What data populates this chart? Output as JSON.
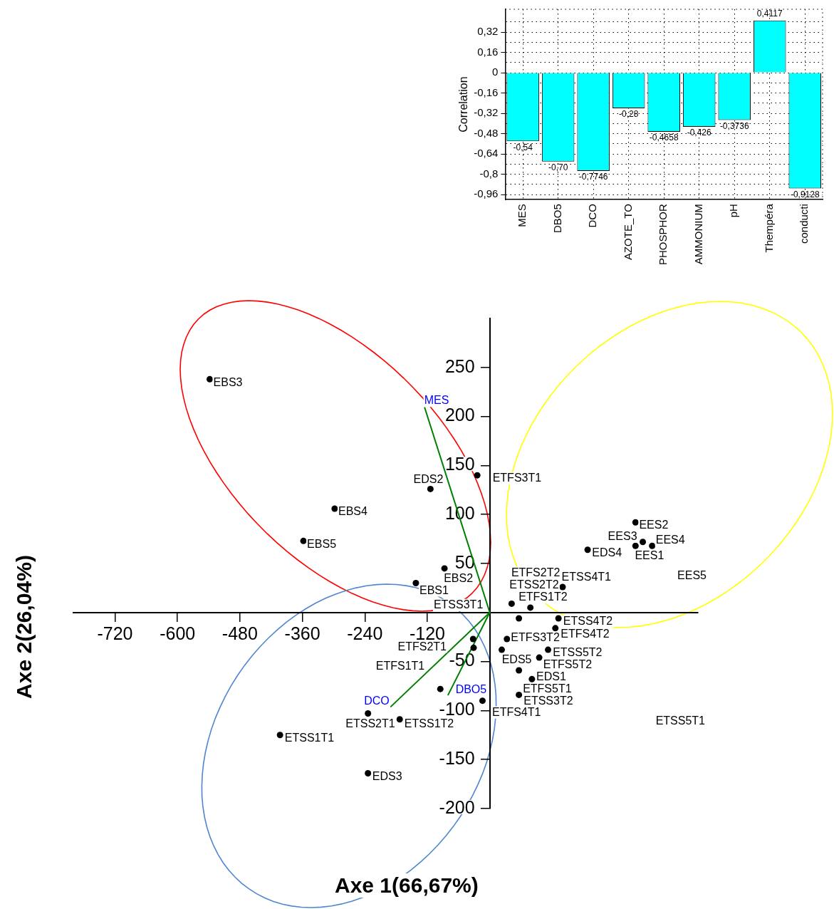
{
  "chart_data": [
    {
      "type": "bar",
      "ylabel": "Correlation",
      "categories": [
        "MES",
        "DBO5",
        "DCO",
        "AZOTE_TO",
        "PHOSPHOR",
        "AMMONIUM",
        "pH",
        "Thempéra",
        "conducti"
      ],
      "values": [
        -0.54,
        -0.7,
        -0.7746,
        -0.28,
        -0.4658,
        -0.426,
        -0.3736,
        0.4117,
        -0.9128
      ],
      "value_labels": [
        "-0,54",
        "-0,70",
        "-0,7746",
        "-0,28",
        "-0,4658",
        "-0,426",
        "-0,3736",
        "0,4117",
        "-0,9128"
      ],
      "color": "#00ffff",
      "ylim": [
        -1,
        0.5
      ],
      "yticks": [
        {
          "value": -0.96,
          "label": "-0,96"
        },
        {
          "value": -0.88,
          "label": null
        },
        {
          "value": -0.8,
          "label": "-0,8"
        },
        {
          "value": -0.72,
          "label": null
        },
        {
          "value": -0.64,
          "label": "-0,64"
        },
        {
          "value": -0.56,
          "label": null
        },
        {
          "value": -0.48,
          "label": "-0,48"
        },
        {
          "value": -0.4,
          "label": null
        },
        {
          "value": -0.32,
          "label": "-0,32"
        },
        {
          "value": -0.24,
          "label": null
        },
        {
          "value": -0.16,
          "label": "-0,16"
        },
        {
          "value": -0.08,
          "label": null
        },
        {
          "value": 0,
          "label": "0"
        },
        {
          "value": 0.08,
          "label": null
        },
        {
          "value": 0.16,
          "label": "0,16"
        },
        {
          "value": 0.24,
          "label": null
        },
        {
          "value": 0.32,
          "label": "0,32"
        },
        {
          "value": 0.4,
          "label": null
        }
      ],
      "grid": true,
      "legend": false
    },
    {
      "type": "scatter",
      "xlabel": "Axe 1(66,67%)",
      "ylabel": "Axe 2(26,04%)",
      "xlim": [
        -800,
        400
      ],
      "ylim": [
        -200,
        300
      ],
      "xticks": [
        -720,
        -600,
        -480,
        -360,
        -240,
        -120
      ],
      "yticks": [
        -200,
        -150,
        -100,
        -50,
        50,
        100,
        150,
        200,
        250
      ],
      "grid": false,
      "legend": false,
      "marker": "circle",
      "series": [
        {
          "type": "scatter",
          "color": "#000000",
          "x": [
            -538,
            -298,
            -358,
            -87,
            -142,
            -114,
            -24,
            280,
            294,
            280,
            312,
            188,
            140,
            42,
            78,
            56,
            132,
            126,
            -32,
            33,
            -31,
            23,
            112,
            95,
            56,
            81,
            -95,
            56,
            -14,
            -173,
            -234,
            -403,
            -234
          ],
          "values": [
            238,
            106,
            73,
            45,
            30,
            126,
            140,
            92,
            72,
            68,
            68,
            64,
            26,
            9,
            5,
            -6,
            -6,
            -16,
            -27,
            -27,
            -36,
            -38,
            -38,
            -46,
            -59,
            -68,
            -78,
            -84,
            -90,
            -109,
            -103,
            -125,
            -164
          ]
        },
        {
          "type": "line",
          "name": "MES",
          "color": "#008000",
          "marker": "none",
          "x": [
            0,
            -125
          ],
          "values": [
            0,
            209
          ]
        },
        {
          "type": "line",
          "name": "DCO",
          "color": "#008000",
          "marker": "none",
          "x": [
            0,
            -190
          ],
          "values": [
            0,
            -96
          ]
        },
        {
          "type": "line",
          "name": "DBO5",
          "color": "#008000",
          "marker": "none",
          "x": [
            0,
            -80
          ],
          "values": [
            0,
            -84
          ]
        }
      ],
      "annotations": [
        {
          "text": "EBS3",
          "x": -538,
          "y": 238
        },
        {
          "text": "EBS4",
          "x": -298,
          "y": 106
        },
        {
          "text": "EBS5",
          "x": -358,
          "y": 73
        },
        {
          "text": "EBS2",
          "x": -87,
          "y": 45
        },
        {
          "text": "EBS1",
          "x": -142,
          "y": 30
        },
        {
          "text": "EDS2",
          "x": -114,
          "y": 126
        },
        {
          "text": "ETFS3T1",
          "x": -24,
          "y": 140
        },
        {
          "text": "EES2",
          "x": 280,
          "y": 92
        },
        {
          "text": "EES3",
          "x": 294,
          "y": 72
        },
        {
          "text": "EES1",
          "x": 280,
          "y": 68
        },
        {
          "text": "EES4",
          "x": 312,
          "y": 68
        },
        "EES5",
        {
          "text": "EDS4",
          "x": 188,
          "y": 64
        },
        {
          "text": "ETSS4T1",
          "x": 140,
          "y": 26
        },
        {
          "text": "ETFS2T2",
          "x": 42,
          "y": 9
        },
        {
          "text": "ETSS2T2",
          "x": 78,
          "y": 5
        },
        {
          "text": "ETFS1T2",
          "x": 56,
          "y": -6
        },
        {
          "text": "ETSS4T2",
          "x": 132,
          "y": -6
        },
        {
          "text": "ETFS4T2",
          "x": 126,
          "y": -16
        },
        {
          "text": "ETSS3T1",
          "x": -32,
          "y": -27
        },
        {
          "text": "ETFS3T2",
          "x": 33,
          "y": -27
        },
        {
          "text": "ETFS2T1",
          "x": -31,
          "y": -36
        },
        {
          "text": "EDS5",
          "x": 23,
          "y": -38
        },
        {
          "text": "ETSS5T2",
          "x": 112,
          "y": -38
        },
        {
          "text": "ETFS5T2",
          "x": 95,
          "y": -46
        },
        {
          "text": "ETFS5T1",
          "x": 56,
          "y": -59
        },
        {
          "text": "EDS1",
          "x": 81,
          "y": -68
        },
        {
          "text": "ETFS1T1",
          "x": -95,
          "y": -78
        },
        {
          "text": "ETSS3T2",
          "x": 56,
          "y": -84
        },
        {
          "text": "ETFS4T1",
          "x": -14,
          "y": -90
        },
        {
          "text": "ETSS1T2",
          "x": -173,
          "y": -109
        },
        {
          "text": "ETSS2T1",
          "x": -234,
          "y": -103
        },
        {
          "text": "ETSS1T1",
          "x": -403,
          "y": -125
        },
        {
          "text": "EDS3",
          "x": -234,
          "y": -164
        },
        "ETSS5T1"
      ]
    }
  ]
}
